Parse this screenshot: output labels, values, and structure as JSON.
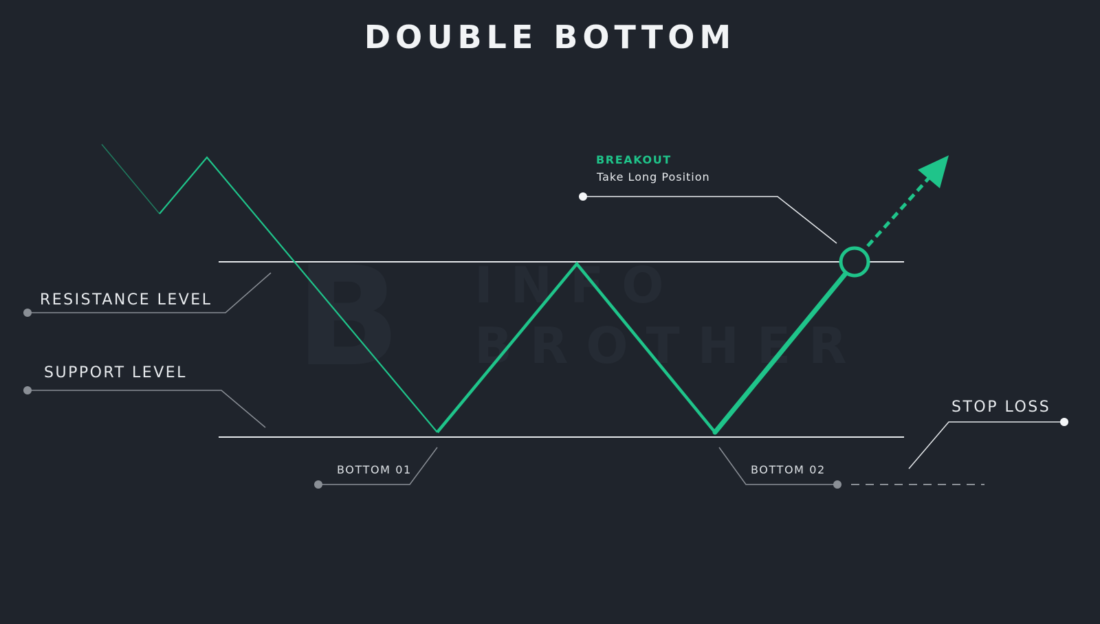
{
  "title": "DOUBLE BOTTOM",
  "labels": {
    "resistance": "RESISTANCE LEVEL",
    "support": "SUPPORT LEVEL",
    "bottom_01": "BOTTOM 01",
    "bottom_02": "BOTTOM 02",
    "stop_loss": "STOP LOSS",
    "breakout": "BREAKOUT",
    "breakout_sub": "Take Long Position"
  },
  "watermark": {
    "line1": "INFO",
    "line2": "BROTHER",
    "monogram": "B"
  },
  "colors": {
    "background": "#1f242c",
    "price_line": "#1fc48a",
    "level_line": "#e6e9ec",
    "leader_line": "#8a8f96",
    "breakout_text": "#1fc48a"
  }
}
